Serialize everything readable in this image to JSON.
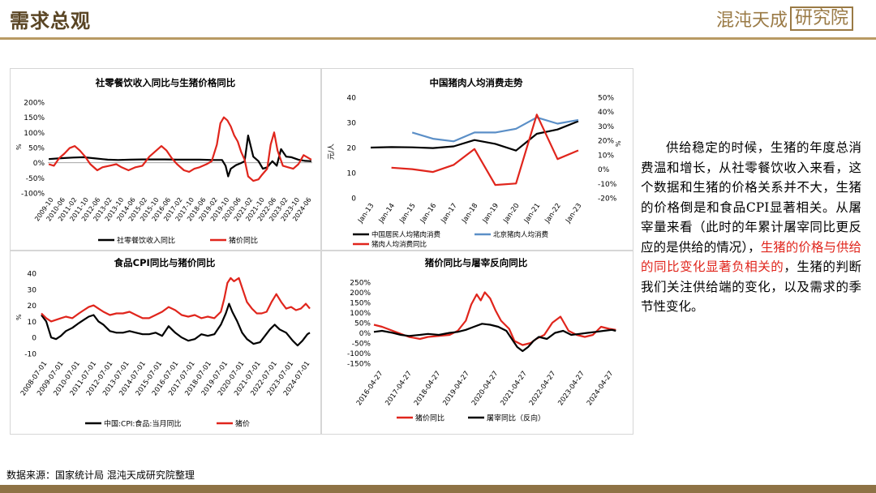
{
  "header": {
    "title": "需求总观",
    "logo_text": "混沌天成",
    "logo_box_text": "研究院"
  },
  "footer": {
    "source": "数据来源：国家统计局 混沌天成研究院整理"
  },
  "body": {
    "part1": "供给稳定的时候，生猪的年度总消费温和增长，从社零餐饮收入来看，这个数据和生猪的价格关系并不大，生猪的价格倒是和食品CPI显著相关。从屠宰量来看（此时的年累计屠宰同比更反应的是供给的情况），",
    "highlight": "生猪的价格与供给的同比变化显著负相关的",
    "part2": "，生猪的判断我们关注供给端的变化，以及需求的季节性变化。"
  },
  "colors": {
    "black": "#000000",
    "red": "#e0251c",
    "blue": "#5b8fc7",
    "gold": "#b89a63"
  },
  "chart_data": [
    {
      "type": "line",
      "title": "社零餐饮收入同比与生猪价格同比",
      "ylabel": "%",
      "ylim": [
        -100,
        200
      ],
      "yticks": [
        "200%",
        "150%",
        "100%",
        "50%",
        "0%",
        "-50%",
        "-100%"
      ],
      "x_ticks": [
        "2009-10",
        "2010-06",
        "2011-02",
        "2011-10",
        "2012-06",
        "2013-02",
        "2013-10",
        "2014-06",
        "2015-02",
        "2015-10",
        "2016-06",
        "2017-02",
        "2017-10",
        "2018-06",
        "2019-02",
        "2019-10",
        "2020-06",
        "2021-02",
        "2021-10",
        "2022-06",
        "2023-02",
        "2023-10",
        "2024-06"
      ],
      "series": [
        {
          "name": "社零餐饮收入同比",
          "color": "#000000",
          "x": [
            2009.8,
            2010.5,
            2011.2,
            2011.8,
            2012.5,
            2013.2,
            2013.8,
            2014.5,
            2015.2,
            2015.8,
            2016.5,
            2017.2,
            2017.8,
            2018.5,
            2019.2,
            2019.8,
            2020.0,
            2020.15,
            2020.3,
            2020.6,
            2020.9,
            2021.1,
            2021.3,
            2021.6,
            2021.9,
            2022.15,
            2022.4,
            2022.7,
            2022.95,
            2023.2,
            2023.5,
            2023.8,
            2024.2,
            2024.6,
            2024.95
          ],
          "y": [
            12,
            15,
            17,
            18,
            14,
            10,
            9,
            10,
            11,
            11,
            11,
            10,
            10,
            10,
            9,
            9,
            -10,
            -45,
            -20,
            -8,
            -1,
            5,
            90,
            20,
            5,
            -20,
            -15,
            5,
            -10,
            45,
            20,
            18,
            10,
            6,
            5
          ]
        },
        {
          "name": "猪价同比",
          "color": "#e0251c",
          "x": [
            2009.8,
            2010.1,
            2010.4,
            2010.7,
            2011.0,
            2011.3,
            2011.6,
            2011.9,
            2012.2,
            2012.6,
            2012.9,
            2013.3,
            2013.7,
            2014.0,
            2014.4,
            2014.8,
            2015.2,
            2015.6,
            2015.9,
            2016.3,
            2016.6,
            2016.9,
            2017.2,
            2017.6,
            2017.9,
            2018.2,
            2018.5,
            2018.9,
            2019.2,
            2019.5,
            2019.7,
            2019.9,
            2020.1,
            2020.3,
            2020.5,
            2020.7,
            2020.9,
            2021.1,
            2021.3,
            2021.6,
            2021.9,
            2022.1,
            2022.4,
            2022.6,
            2022.8,
            2023.0,
            2023.3,
            2023.6,
            2023.9,
            2024.2,
            2024.5,
            2024.8,
            2024.95
          ],
          "y": [
            -5,
            -10,
            15,
            30,
            48,
            55,
            40,
            20,
            -5,
            -25,
            -15,
            -10,
            -5,
            -15,
            -25,
            -15,
            -10,
            20,
            35,
            55,
            40,
            15,
            -5,
            -25,
            -30,
            -20,
            -15,
            -5,
            5,
            60,
            130,
            150,
            140,
            120,
            90,
            70,
            35,
            10,
            -45,
            -60,
            -55,
            -40,
            -20,
            60,
            100,
            40,
            -10,
            -15,
            -20,
            -5,
            25,
            15,
            10
          ]
        }
      ]
    },
    {
      "type": "line",
      "title": "中国猪肉人均消费走势",
      "ylabel": "元/人",
      "ylim": [
        0,
        40
      ],
      "y2lim": [
        -20,
        50
      ],
      "yticks": [
        "40",
        "30",
        "20",
        "10",
        "0"
      ],
      "y2ticks": [
        "50%",
        "40%",
        "30%",
        "20%",
        "10%",
        "0%",
        "-10%",
        "-20%"
      ],
      "categories": [
        "Jan-13",
        "Jan-14",
        "Jan-15",
        "Jan-16",
        "Jan-17",
        "Jan-18",
        "Jan-19",
        "Jan-20",
        "Jan-21",
        "Jan-22",
        "Jan-23"
      ],
      "series": [
        {
          "name": "中国居民人均猪肉消费",
          "color": "#000000",
          "axis": "left",
          "values": [
            20,
            20.2,
            20.1,
            19.8,
            20.5,
            23,
            21.5,
            18.8,
            25.5,
            27.2,
            30.5
          ]
        },
        {
          "name": "北京猪肉人均消费",
          "color": "#5b8fc7",
          "axis": "left",
          "values": [
            null,
            null,
            26,
            23.5,
            22.5,
            26,
            26,
            27.5,
            32,
            29.5,
            31
          ]
        },
        {
          "name": "猪肉人均消费同比",
          "color": "#e0251c",
          "axis": "right",
          "values": [
            null,
            1,
            0,
            -2,
            3,
            14,
            -11,
            -10,
            38,
            7,
            13
          ]
        }
      ]
    },
    {
      "type": "line",
      "title": "食品CPI同比与猪价同比",
      "ylabel": "%",
      "ylim": [
        -10,
        40
      ],
      "yticks": [
        "40",
        "30",
        "20",
        "10",
        "0",
        "-10"
      ],
      "x_ticks": [
        "2008-07-01",
        "2009-07-01",
        "2010-07-01",
        "2011-07-01",
        "2012-07-01",
        "2013-07-01",
        "2014-07-01",
        "2015-07-01",
        "2016-07-01",
        "2017-07-01",
        "2018-07-01",
        "2019-07-01",
        "2020-07-01",
        "2021-07-01",
        "2022-07-01",
        "2023-07-01",
        "2024-07-01"
      ],
      "series": [
        {
          "name": "中国:CPI:食品:当月同比",
          "color": "#000000",
          "x": [
            2008.5,
            2008.8,
            2009.1,
            2009.4,
            2009.7,
            2010.0,
            2010.4,
            2010.8,
            2011.1,
            2011.4,
            2011.7,
            2012.0,
            2012.3,
            2012.7,
            2013.1,
            2013.5,
            2013.9,
            2014.3,
            2014.7,
            2015.1,
            2015.5,
            2015.9,
            2016.3,
            2016.7,
            2017.1,
            2017.5,
            2017.9,
            2018.3,
            2018.7,
            2019.1,
            2019.5,
            2019.8,
            2020.0,
            2020.2,
            2020.5,
            2020.8,
            2021.1,
            2021.5,
            2021.9,
            2022.2,
            2022.5,
            2022.8,
            2023.1,
            2023.5,
            2023.9,
            2024.2,
            2024.5,
            2024.8,
            2024.95
          ],
          "y": [
            14,
            10,
            0,
            -1,
            1,
            4,
            6,
            9,
            11,
            13,
            14,
            10,
            8,
            4,
            3,
            3,
            4,
            3,
            2,
            2,
            3,
            1,
            7,
            3,
            0,
            -2,
            -1,
            2,
            1,
            2,
            8,
            15,
            21,
            16,
            10,
            3,
            -1,
            -4,
            -3,
            1,
            5,
            8,
            5,
            3,
            -2,
            -5,
            -2,
            2,
            3
          ]
        },
        {
          "name": "猪价",
          "color": "#e0251c",
          "x": [
            2008.5,
            2008.8,
            2009.1,
            2009.4,
            2009.7,
            2010.0,
            2010.4,
            2010.8,
            2011.1,
            2011.4,
            2011.7,
            2012.0,
            2012.3,
            2012.7,
            2013.1,
            2013.5,
            2013.9,
            2014.3,
            2014.7,
            2015.1,
            2015.5,
            2015.9,
            2016.3,
            2016.7,
            2017.1,
            2017.5,
            2017.9,
            2018.3,
            2018.7,
            2019.1,
            2019.5,
            2019.7,
            2019.9,
            2020.1,
            2020.3,
            2020.6,
            2020.9,
            2021.1,
            2021.4,
            2021.7,
            2022.0,
            2022.3,
            2022.6,
            2022.9,
            2023.2,
            2023.5,
            2023.8,
            2024.1,
            2024.4,
            2024.7,
            2024.95
          ],
          "y": [
            15,
            12,
            10,
            11,
            12,
            13,
            12,
            15,
            17,
            19,
            20,
            18,
            16,
            14,
            15,
            15,
            16,
            14,
            12,
            12,
            14,
            16,
            19,
            17,
            14,
            13,
            14,
            12,
            13,
            12,
            16,
            24,
            34,
            37,
            35,
            37,
            28,
            22,
            18,
            15,
            15,
            16,
            22,
            27,
            22,
            18,
            19,
            17,
            18,
            21,
            18
          ]
        }
      ]
    },
    {
      "type": "line",
      "title": "猪价同比与屠宰反向同比",
      "ylim": [
        -150,
        250
      ],
      "yticks": [
        "250%",
        "200%",
        "150%",
        "100%",
        "50%",
        "0%",
        "-50%",
        "-100%",
        "-150%"
      ],
      "x_ticks": [
        "2016-04-27",
        "2017-04-27",
        "2018-04-27",
        "2019-04-27",
        "2020-04-27",
        "2021-04-27",
        "2022-04-27",
        "2023-04-27",
        "2024-04-27"
      ],
      "series": [
        {
          "name": "猪价同比",
          "color": "#e0251c",
          "x": [
            2016.0,
            2016.3,
            2016.7,
            2017.0,
            2017.3,
            2017.7,
            2018.0,
            2018.4,
            2018.8,
            2019.1,
            2019.4,
            2019.6,
            2019.8,
            2019.95,
            2020.1,
            2020.3,
            2020.5,
            2020.7,
            2021.0,
            2021.2,
            2021.5,
            2021.8,
            2022.0,
            2022.3,
            2022.6,
            2022.9,
            2023.2,
            2023.5,
            2023.8,
            2024.1,
            2024.4,
            2024.7,
            2024.95
          ],
          "y": [
            40,
            30,
            10,
            -5,
            -20,
            -30,
            -20,
            -15,
            -10,
            10,
            60,
            140,
            190,
            160,
            200,
            170,
            110,
            60,
            20,
            -40,
            -60,
            -50,
            -30,
            -10,
            50,
            80,
            10,
            -10,
            -20,
            -10,
            30,
            20,
            15
          ]
        },
        {
          "name": "屠宰同比（反向）",
          "color": "#000000",
          "x": [
            2016.0,
            2016.3,
            2016.7,
            2017.0,
            2017.3,
            2017.7,
            2018.0,
            2018.4,
            2018.8,
            2019.1,
            2019.4,
            2019.7,
            2020.0,
            2020.3,
            2020.6,
            2020.9,
            2021.1,
            2021.3,
            2021.5,
            2021.7,
            2021.9,
            2022.1,
            2022.4,
            2022.7,
            2023.0,
            2023.3,
            2023.6,
            2023.9,
            2024.2,
            2024.5,
            2024.8,
            2024.95
          ],
          "y": [
            5,
            10,
            0,
            -10,
            -15,
            -10,
            -5,
            -10,
            0,
            5,
            15,
            30,
            45,
            40,
            30,
            10,
            -30,
            -70,
            -90,
            -70,
            -40,
            -20,
            -30,
            0,
            10,
            -10,
            -5,
            0,
            5,
            10,
            15,
            10
          ]
        }
      ]
    }
  ]
}
